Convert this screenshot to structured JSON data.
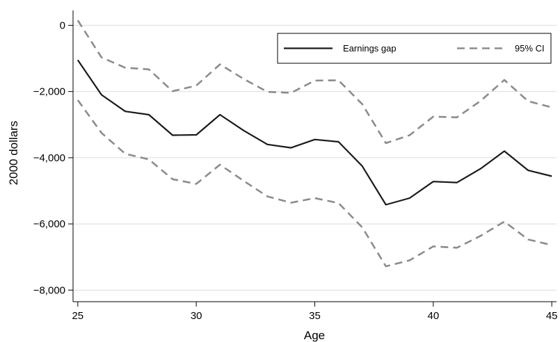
{
  "chart_data": {
    "type": "line",
    "xlabel": "Age",
    "ylabel": "2000 dollars",
    "xlim": [
      24.8,
      45.2
    ],
    "ylim": [
      -8350,
      450
    ],
    "xticks": [
      25,
      30,
      35,
      40,
      45
    ],
    "xtick_labels": [
      "25",
      "30",
      "35",
      "40",
      "45"
    ],
    "yticks": [
      0,
      -2000,
      -4000,
      -6000,
      -8000
    ],
    "ytick_labels": [
      "0",
      "−2,000",
      "−4,000",
      "−6,000",
      "−8,000"
    ],
    "grid": "horizontal",
    "legend_position": "top-right",
    "x": [
      25,
      26,
      27,
      28,
      29,
      30,
      31,
      32,
      33,
      34,
      35,
      36,
      37,
      38,
      39,
      40,
      41,
      42,
      43,
      44,
      45
    ],
    "series": [
      {
        "name": "Earnings gap",
        "style": "solid",
        "color": "#1a1a1a",
        "values": [
          -1050,
          -2100,
          -2600,
          -2700,
          -3320,
          -3310,
          -2700,
          -3180,
          -3600,
          -3700,
          -3450,
          -3520,
          -4250,
          -5420,
          -5220,
          -4720,
          -4750,
          -4330,
          -3800,
          -4380,
          -4560
        ]
      },
      {
        "name": "95% CI",
        "style": "dashed",
        "color": "#8c8c8c",
        "values": [
          150,
          -970,
          -1280,
          -1330,
          -1990,
          -1820,
          -1180,
          -1620,
          -2010,
          -2040,
          -1670,
          -1660,
          -2380,
          -3560,
          -3320,
          -2760,
          -2780,
          -2280,
          -1650,
          -2290,
          -2480
        ]
      },
      {
        "name": "95% CI",
        "style": "dashed",
        "color": "#8c8c8c",
        "show_in_legend": false,
        "values": [
          -2260,
          -3250,
          -3880,
          -4050,
          -4650,
          -4790,
          -4210,
          -4700,
          -5170,
          -5360,
          -5220,
          -5370,
          -6100,
          -7280,
          -7100,
          -6680,
          -6720,
          -6360,
          -5930,
          -6470,
          -6640
        ]
      }
    ]
  }
}
